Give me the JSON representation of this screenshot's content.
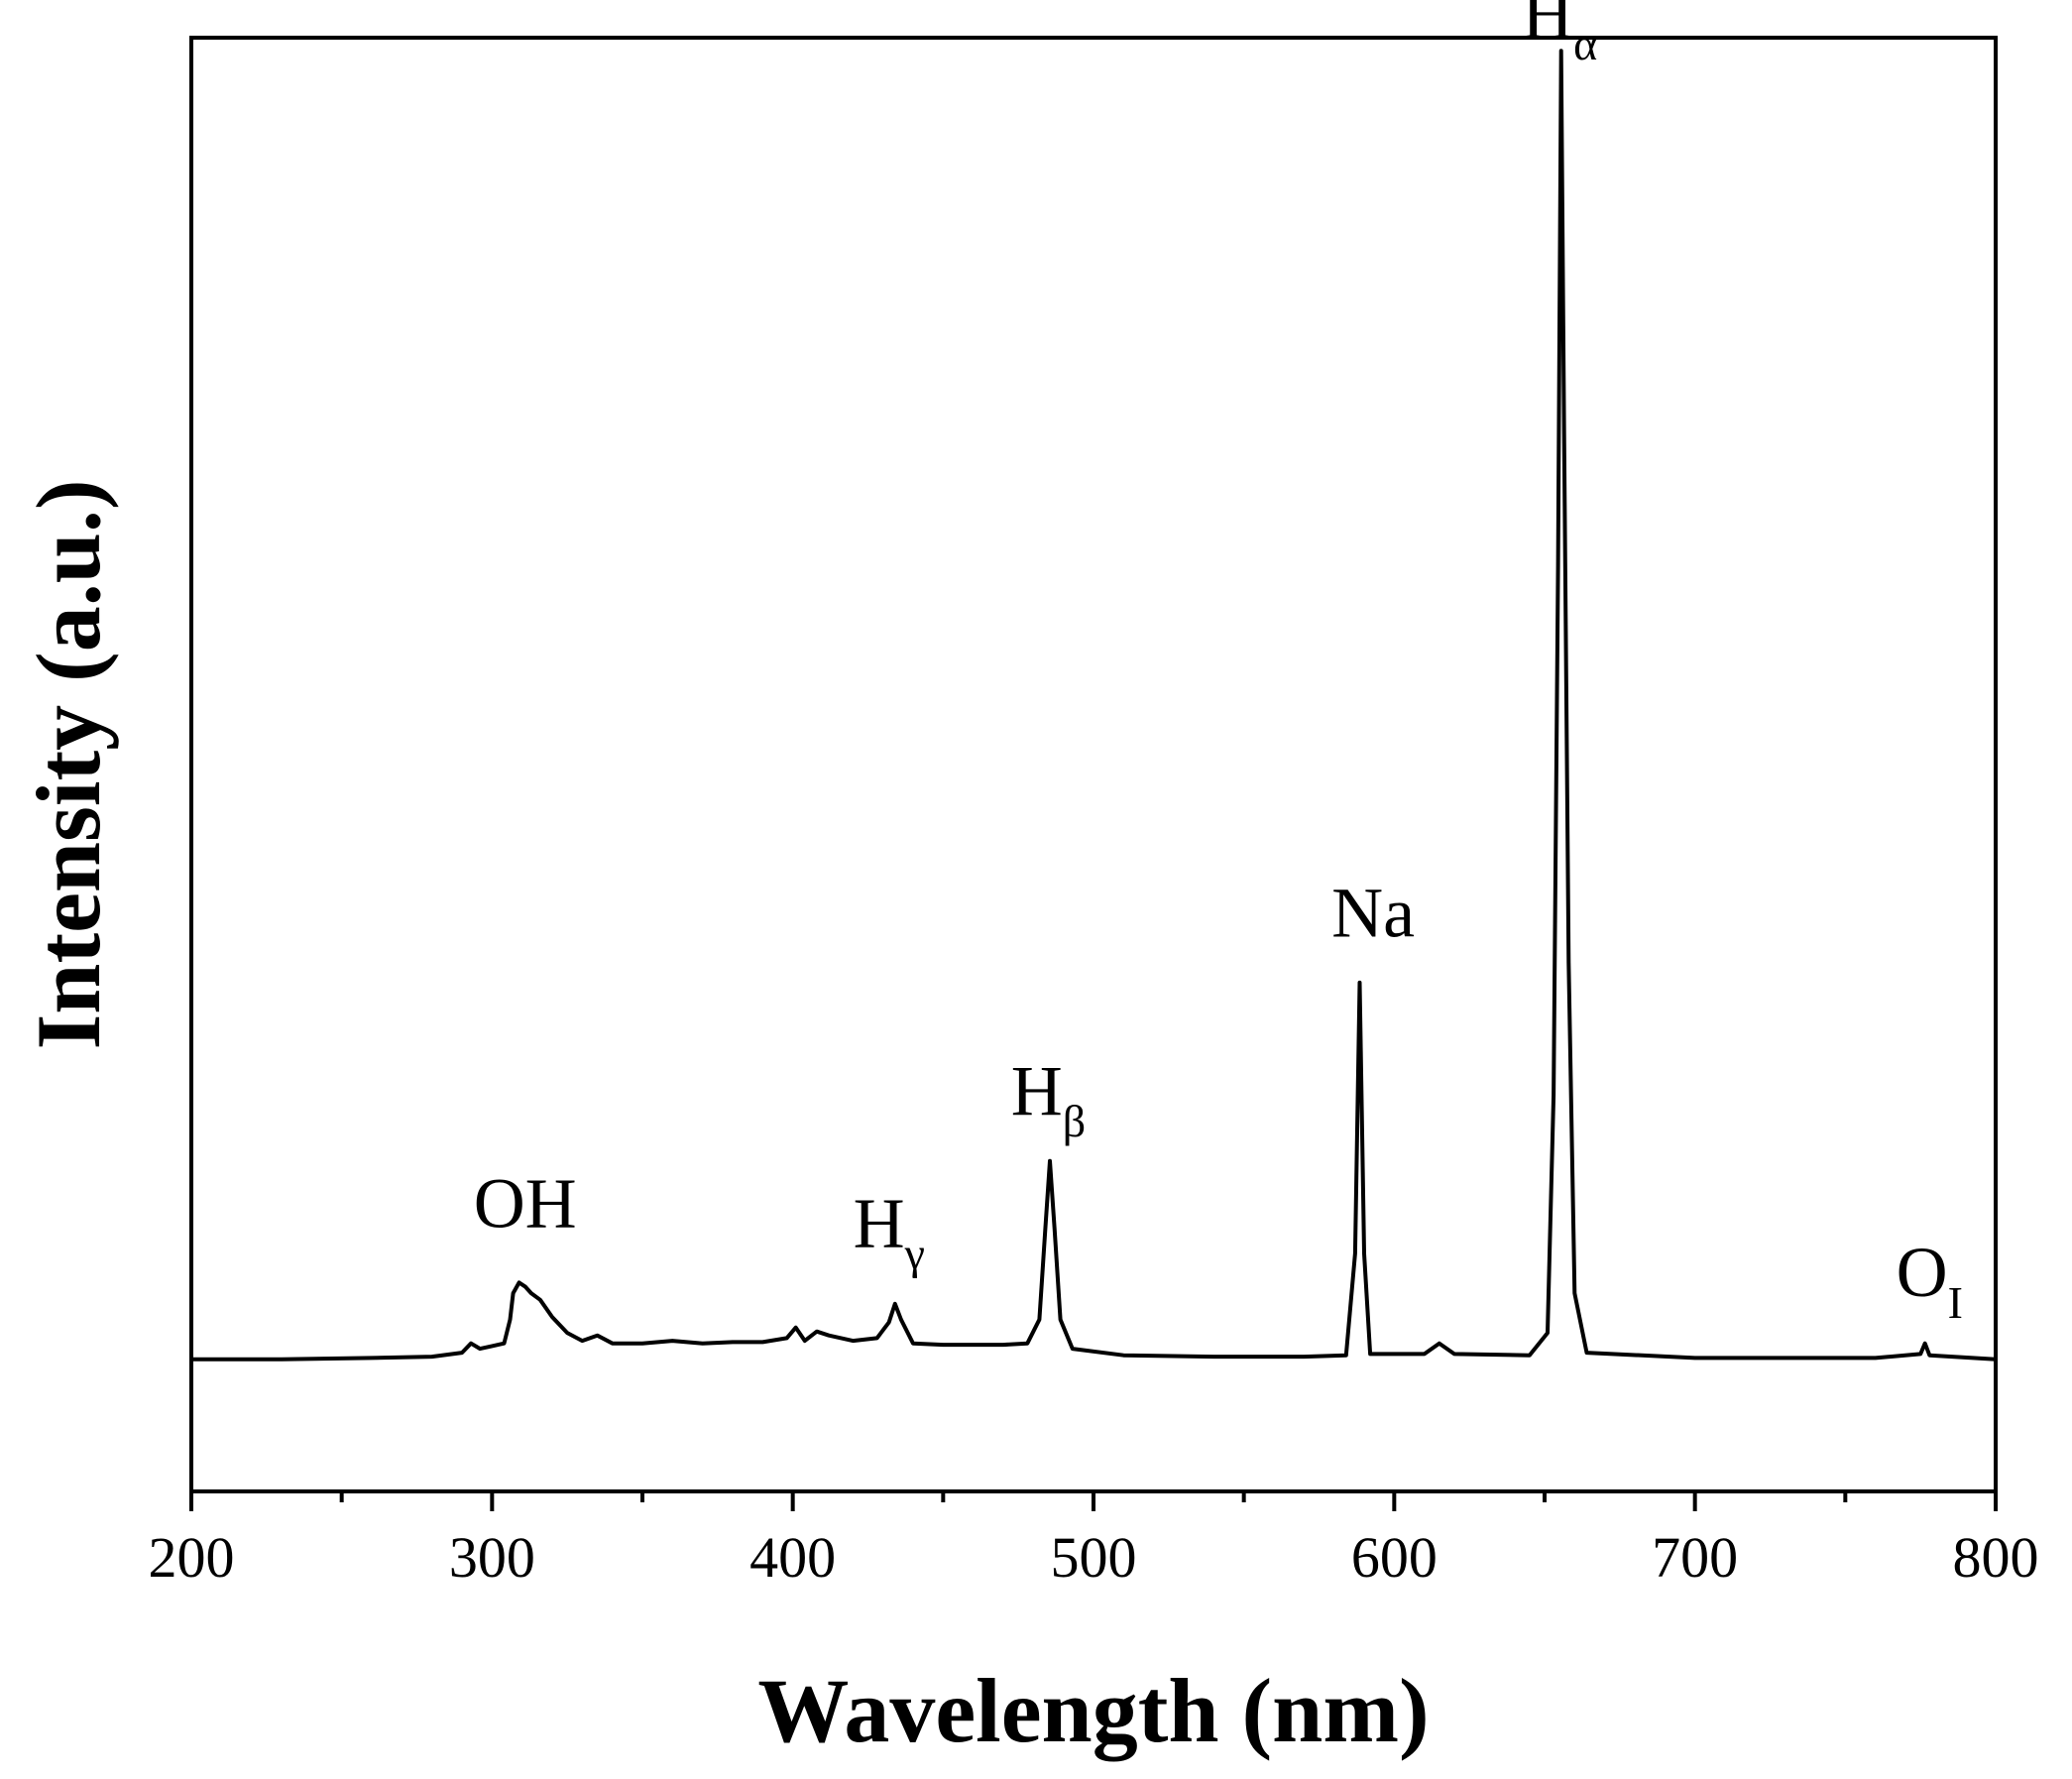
{
  "chart_data": {
    "type": "line",
    "title": "",
    "xlabel": "Wavelength (nm)",
    "ylabel": "Intensity (a.u.)",
    "xlim": [
      200,
      800
    ],
    "ylim": [
      -0.1,
      1.0
    ],
    "x_ticks": [
      "200",
      "300",
      "400",
      "500",
      "600",
      "700",
      "800"
    ],
    "y_ticks_labeled": false,
    "grid": false,
    "legend": "none",
    "line_color": "#000000",
    "series": [
      {
        "points": [
          [
            200,
            0.0
          ],
          [
            230,
            0.0
          ],
          [
            260,
            0.001
          ],
          [
            280,
            0.002
          ],
          [
            290,
            0.005
          ],
          [
            293,
            0.012
          ],
          [
            296,
            0.008
          ],
          [
            300,
            0.01
          ],
          [
            304,
            0.012
          ],
          [
            306,
            0.03
          ],
          [
            307,
            0.05
          ],
          [
            309,
            0.058
          ],
          [
            311,
            0.055
          ],
          [
            313,
            0.05
          ],
          [
            316,
            0.045
          ],
          [
            320,
            0.032
          ],
          [
            325,
            0.02
          ],
          [
            330,
            0.014
          ],
          [
            335,
            0.018
          ],
          [
            340,
            0.012
          ],
          [
            350,
            0.012
          ],
          [
            360,
            0.014
          ],
          [
            370,
            0.012
          ],
          [
            380,
            0.013
          ],
          [
            390,
            0.013
          ],
          [
            398,
            0.016
          ],
          [
            401,
            0.024
          ],
          [
            404,
            0.014
          ],
          [
            408,
            0.021
          ],
          [
            412,
            0.018
          ],
          [
            420,
            0.014
          ],
          [
            428,
            0.016
          ],
          [
            432,
            0.028
          ],
          [
            434,
            0.042
          ],
          [
            436,
            0.03
          ],
          [
            440,
            0.012
          ],
          [
            450,
            0.011
          ],
          [
            460,
            0.011
          ],
          [
            470,
            0.011
          ],
          [
            478,
            0.012
          ],
          [
            482,
            0.03
          ],
          [
            484,
            0.1
          ],
          [
            485.5,
            0.15
          ],
          [
            487,
            0.1
          ],
          [
            489,
            0.03
          ],
          [
            493,
            0.008
          ],
          [
            510,
            0.003
          ],
          [
            540,
            0.002
          ],
          [
            570,
            0.002
          ],
          [
            584,
            0.003
          ],
          [
            587,
            0.08
          ],
          [
            588.5,
            0.285
          ],
          [
            590,
            0.08
          ],
          [
            592,
            0.004
          ],
          [
            610,
            0.004
          ],
          [
            615,
            0.012
          ],
          [
            620,
            0.004
          ],
          [
            645,
            0.003
          ],
          [
            651,
            0.02
          ],
          [
            653,
            0.2
          ],
          [
            654.5,
            0.6
          ],
          [
            655.5,
            0.99
          ],
          [
            656.5,
            0.7
          ],
          [
            658,
            0.3
          ],
          [
            660,
            0.05
          ],
          [
            664,
            0.005
          ],
          [
            700,
            0.001
          ],
          [
            760,
            0.001
          ],
          [
            775,
            0.004
          ],
          [
            776.5,
            0.012
          ],
          [
            778,
            0.003
          ],
          [
            800,
            0.0
          ]
        ]
      }
    ],
    "annotations": [
      {
        "base": "OH",
        "sub": "",
        "x": 311,
        "y": 0.1
      },
      {
        "base": "H",
        "sub": "γ",
        "x": 432,
        "y": 0.085
      },
      {
        "base": "H",
        "sub": "β",
        "x": 485,
        "y": 0.185
      },
      {
        "base": "Na",
        "sub": "",
        "x": 593,
        "y": 0.32
      },
      {
        "base": "H",
        "sub": "α",
        "x": 655,
        "y": 1.0
      },
      {
        "base": "O",
        "sub": "I",
        "x": 778,
        "y": 0.048
      }
    ]
  }
}
